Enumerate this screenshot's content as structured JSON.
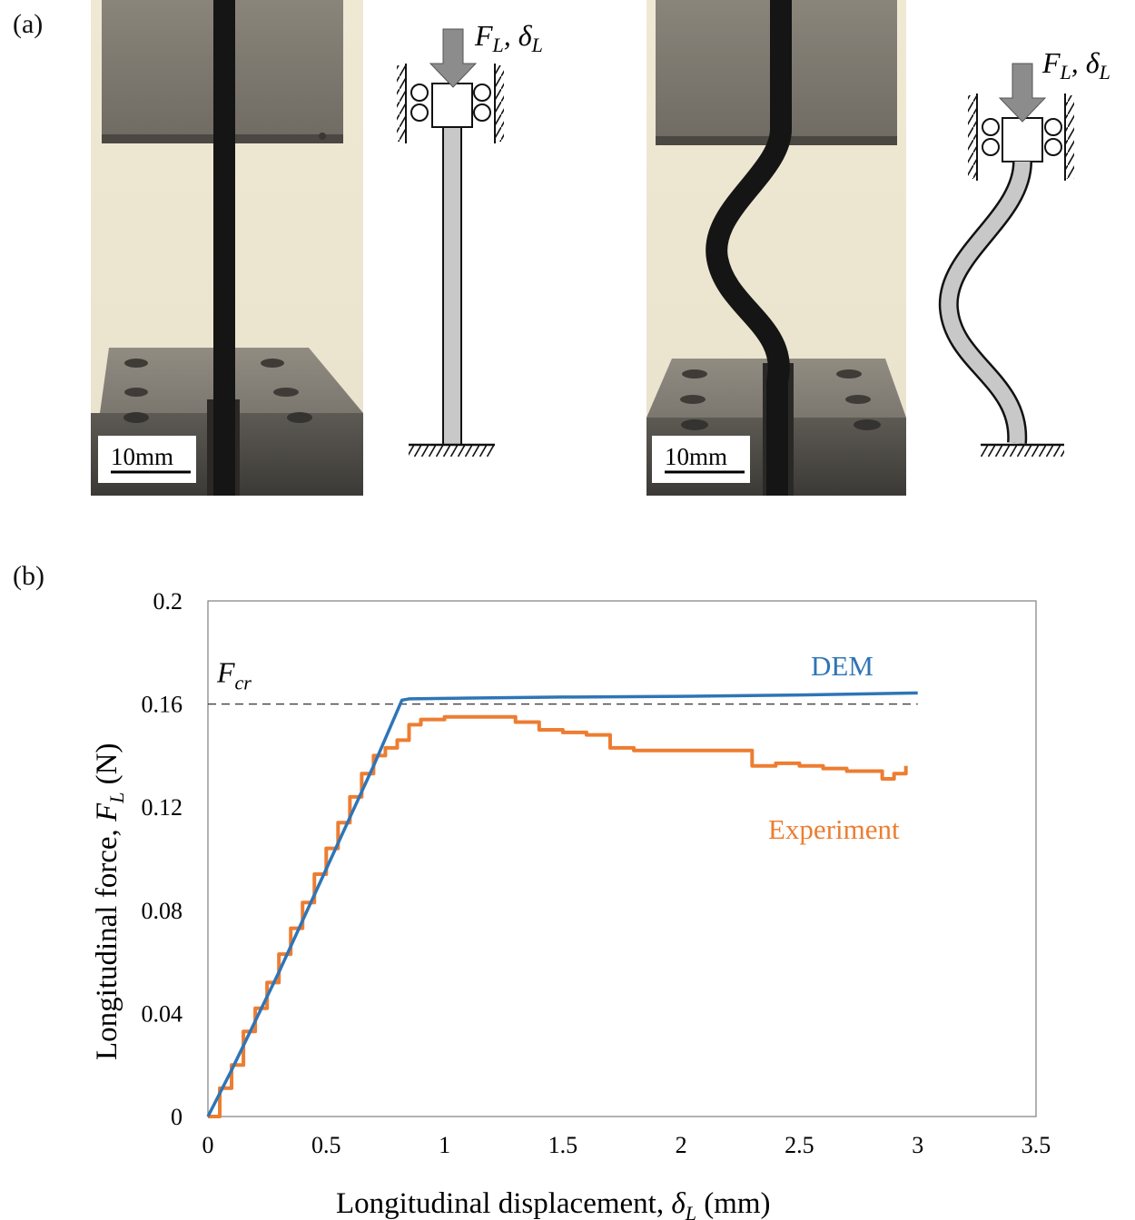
{
  "panel_a": {
    "label": "(a)",
    "load_label": {
      "symbol": "F",
      "sub": "L",
      "sep": ", ",
      "symbol2": "δ",
      "sub2": "L"
    },
    "photo_left": {
      "scale_bar": "10mm",
      "state": "straight"
    },
    "photo_right": {
      "scale_bar": "10mm",
      "state": "buckled"
    }
  },
  "panel_b": {
    "label": "(b)"
  },
  "chart_data": {
    "type": "line",
    "xlabel_text": "Longitudinal displacement, ",
    "xlabel_symbol": "δ",
    "xlabel_sub": "L",
    "xlabel_unit": " (mm)",
    "ylabel_text": "Longitudinal force, ",
    "ylabel_symbol": "F",
    "ylabel_sub": "L",
    "ylabel_unit": " (N)",
    "xlim": [
      0,
      3.5
    ],
    "ylim": [
      0,
      0.2
    ],
    "xticks": [
      "0",
      "0.5",
      "1",
      "1.5",
      "2",
      "2.5",
      "3",
      "3.5"
    ],
    "xtick_values": [
      0,
      0.5,
      1,
      1.5,
      2,
      2.5,
      3,
      3.5
    ],
    "yticks": [
      "0",
      "0.04",
      "0.08",
      "0.12",
      "0.16",
      "0.2"
    ],
    "ytick_values": [
      0,
      0.04,
      0.08,
      0.12,
      0.16,
      0.2
    ],
    "grid": false,
    "reference_line": {
      "label_symbol": "F",
      "label_sub": "cr",
      "y": 0.16,
      "style": "dashed"
    },
    "series": [
      {
        "name": "DEM",
        "color": "#2e75b6",
        "x": [
          0,
          0.1,
          0.2,
          0.3,
          0.4,
          0.5,
          0.6,
          0.7,
          0.78,
          0.82,
          0.85,
          1.0,
          1.5,
          2.0,
          2.5,
          3.0
        ],
        "y": [
          0,
          0.018,
          0.037,
          0.056,
          0.076,
          0.096,
          0.116,
          0.136,
          0.153,
          0.1615,
          0.162,
          0.1622,
          0.1627,
          0.163,
          0.1635,
          0.1643
        ]
      },
      {
        "name": "Experiment",
        "color": "#ed7d31",
        "x": [
          0,
          0.05,
          0.1,
          0.15,
          0.2,
          0.25,
          0.3,
          0.35,
          0.4,
          0.45,
          0.5,
          0.55,
          0.6,
          0.65,
          0.7,
          0.75,
          0.8,
          0.85,
          0.9,
          1.0,
          1.1,
          1.2,
          1.3,
          1.4,
          1.5,
          1.6,
          1.7,
          1.8,
          1.9,
          2.0,
          2.1,
          2.2,
          2.3,
          2.4,
          2.5,
          2.6,
          2.7,
          2.8,
          2.85,
          2.9,
          2.95
        ],
        "y": [
          0,
          0.011,
          0.02,
          0.033,
          0.042,
          0.052,
          0.063,
          0.073,
          0.083,
          0.094,
          0.104,
          0.114,
          0.124,
          0.133,
          0.14,
          0.143,
          0.146,
          0.152,
          0.154,
          0.155,
          0.155,
          0.155,
          0.153,
          0.15,
          0.149,
          0.148,
          0.143,
          0.142,
          0.142,
          0.142,
          0.142,
          0.142,
          0.136,
          0.137,
          0.136,
          0.135,
          0.134,
          0.134,
          0.131,
          0.133,
          0.136
        ]
      }
    ]
  }
}
